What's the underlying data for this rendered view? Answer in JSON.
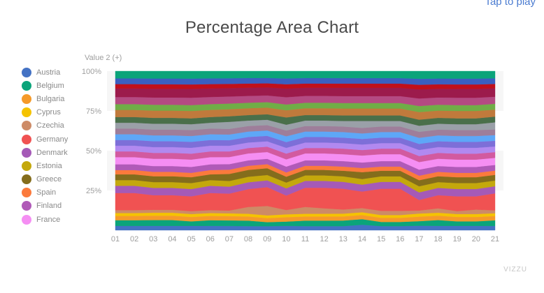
{
  "header": {
    "tap_label": "Tap to play"
  },
  "footer": {
    "watermark": "VIZZU"
  },
  "chart_data": {
    "type": "area",
    "stacking": "percent",
    "title": "Percentage Area Chart",
    "ylabel": "Value 2 (+)",
    "xlabel": "",
    "ylim": [
      0,
      100
    ],
    "yticks": [
      "25%",
      "50%",
      "75%",
      "100%"
    ],
    "categories": [
      "01",
      "02",
      "03",
      "04",
      "05",
      "06",
      "07",
      "08",
      "09",
      "10",
      "11",
      "12",
      "13",
      "14",
      "15",
      "16",
      "17",
      "18",
      "19",
      "20",
      "21"
    ],
    "series": [
      {
        "name": "Austria",
        "color": "#4472c4",
        "values": [
          3,
          3,
          3,
          3,
          3,
          3,
          3,
          3,
          3,
          3,
          3,
          3,
          3,
          4,
          3,
          3,
          3,
          3,
          3,
          3,
          3
        ]
      },
      {
        "name": "Belgium",
        "color": "#0ba47a",
        "values": [
          4,
          4,
          4,
          4,
          3,
          4,
          4,
          4,
          3,
          3,
          4,
          4,
          4,
          4,
          3,
          3,
          3,
          4,
          3,
          3,
          4
        ]
      },
      {
        "name": "Bulgaria",
        "color": "#f59a2a",
        "values": [
          3,
          3,
          3,
          3,
          3,
          3,
          3,
          3,
          3,
          3,
          3,
          3,
          3,
          3,
          3,
          3,
          3,
          3,
          3,
          3,
          3
        ]
      },
      {
        "name": "Cyprus",
        "color": "#f5c300",
        "values": [
          2,
          2,
          2,
          2,
          2,
          2,
          2,
          2,
          2,
          2,
          2,
          2,
          2,
          2,
          2,
          2,
          2,
          2,
          2,
          2,
          2
        ]
      },
      {
        "name": "Czechia",
        "color": "#cd8b67",
        "values": [
          2,
          2,
          2,
          2,
          2,
          2,
          2,
          5,
          7,
          3,
          5,
          4,
          3,
          3,
          3,
          3,
          2,
          3,
          2,
          3,
          2
        ]
      },
      {
        "name": "Germany",
        "color": "#f05252",
        "values": [
          12,
          12,
          10,
          10,
          10,
          12,
          12,
          13,
          14,
          10,
          14,
          15,
          15,
          12,
          16,
          16,
          7,
          9,
          10,
          9,
          12
        ]
      },
      {
        "name": "Denmark",
        "color": "#a55ab7",
        "values": [
          5,
          5,
          5,
          5,
          5,
          5,
          5,
          5,
          5,
          5,
          5,
          5,
          5,
          5,
          5,
          5,
          5,
          5,
          5,
          5,
          5
        ]
      },
      {
        "name": "Estonia",
        "color": "#c4a80c",
        "values": [
          4,
          4,
          4,
          4,
          4,
          4,
          4,
          4,
          4,
          4,
          4,
          4,
          4,
          4,
          4,
          4,
          4,
          4,
          4,
          4,
          4
        ]
      },
      {
        "name": "Greece",
        "color": "#846d1c",
        "values": [
          4,
          4,
          4,
          4,
          4,
          4,
          5,
          5,
          5,
          4,
          4,
          4,
          4,
          5,
          4,
          4,
          4,
          4,
          4,
          4,
          4
        ]
      },
      {
        "name": "Spain",
        "color": "#fb7a3c",
        "values": [
          3,
          3,
          3,
          3,
          3,
          3,
          3,
          3,
          3,
          3,
          3,
          3,
          3,
          3,
          3,
          3,
          3,
          3,
          3,
          3,
          3
        ]
      },
      {
        "name": "Finland",
        "color": "#b05ab8",
        "values": [
          4,
          4,
          4,
          4,
          4,
          4,
          4,
          4,
          4,
          4,
          4,
          4,
          4,
          4,
          4,
          4,
          4,
          4,
          4,
          4,
          4
        ]
      },
      {
        "name": "France",
        "color": "#f58ef3",
        "values": [
          5,
          5,
          5,
          5,
          5,
          5,
          5,
          5,
          5,
          5,
          5,
          5,
          5,
          5,
          5,
          5,
          5,
          5,
          5,
          5,
          5
        ]
      },
      {
        "name": "",
        "color": "#d25aa0",
        "values": [
          4,
          4,
          4,
          4,
          4,
          4,
          4,
          4,
          4,
          4,
          4,
          4,
          4,
          4,
          4,
          4,
          4,
          4,
          4,
          4,
          4
        ]
      },
      {
        "name": "",
        "color": "#b189f0",
        "values": [
          4,
          4,
          4,
          4,
          4,
          4,
          4,
          4,
          4,
          4,
          4,
          4,
          4,
          4,
          4,
          4,
          4,
          4,
          4,
          4,
          4
        ]
      },
      {
        "name": "",
        "color": "#7d6fd8",
        "values": [
          4,
          4,
          4,
          4,
          4,
          4,
          4,
          4,
          4,
          4,
          4,
          4,
          4,
          4,
          4,
          4,
          4,
          4,
          4,
          4,
          4
        ]
      },
      {
        "name": "",
        "color": "#5ea7f7",
        "values": [
          4,
          4,
          4,
          4,
          4,
          4,
          4,
          4,
          4,
          4,
          4,
          4,
          4,
          4,
          4,
          4,
          4,
          4,
          4,
          4,
          4
        ]
      },
      {
        "name": "",
        "color": "#9e7e9a",
        "values": [
          4,
          4,
          4,
          4,
          4,
          4,
          4,
          4,
          4,
          4,
          4,
          4,
          4,
          4,
          4,
          4,
          4,
          4,
          4,
          4,
          4
        ]
      },
      {
        "name": "",
        "color": "#9aa0a8",
        "values": [
          4,
          4,
          4,
          4,
          4,
          4,
          5,
          4,
          4,
          4,
          4,
          4,
          4,
          5,
          4,
          4,
          4,
          4,
          4,
          4,
          5
        ]
      },
      {
        "name": "",
        "color": "#4a6f4a",
        "values": [
          4,
          4,
          4,
          4,
          4,
          4,
          4,
          4,
          4,
          5,
          4,
          4,
          4,
          4,
          4,
          4,
          4,
          4,
          4,
          4,
          4
        ]
      },
      {
        "name": "",
        "color": "#c07a3c",
        "values": [
          5,
          5,
          5,
          5,
          5,
          5,
          5,
          5,
          5,
          5,
          5,
          5,
          5,
          5,
          5,
          5,
          5,
          5,
          5,
          5,
          5
        ]
      },
      {
        "name": "",
        "color": "#70ad47",
        "values": [
          4,
          4,
          4,
          4,
          4,
          4,
          4,
          4,
          4,
          4,
          4,
          4,
          4,
          4,
          4,
          4,
          4,
          4,
          4,
          4,
          4
        ]
      },
      {
        "name": "",
        "color": "#b44a82",
        "values": [
          5,
          5,
          5,
          5,
          5,
          5,
          5,
          5,
          5,
          5,
          5,
          5,
          5,
          5,
          5,
          5,
          5,
          5,
          5,
          5,
          5
        ]
      },
      {
        "name": "",
        "color": "#9c1b4c",
        "values": [
          6,
          6,
          6,
          6,
          6,
          6,
          6,
          6,
          6,
          6,
          6,
          6,
          6,
          6,
          6,
          6,
          6,
          6,
          6,
          6,
          6
        ]
      },
      {
        "name": "",
        "color": "#c0101b",
        "values": [
          3,
          3,
          3,
          3,
          3,
          3,
          3,
          3,
          3,
          3,
          3,
          3,
          3,
          3,
          3,
          3,
          3,
          3,
          3,
          3,
          3
        ]
      },
      {
        "name": "",
        "color": "#3b5fc0",
        "values": [
          4,
          4,
          4,
          4,
          4,
          4,
          4,
          4,
          4,
          4,
          4,
          4,
          4,
          4,
          4,
          4,
          4,
          4,
          4,
          4,
          4
        ]
      },
      {
        "name": "",
        "color": "#0ba47a",
        "values": [
          5,
          5,
          5,
          5,
          5,
          5,
          5,
          5,
          5,
          5,
          5,
          5,
          5,
          5,
          5,
          5,
          5,
          5,
          5,
          5,
          5
        ]
      }
    ],
    "legend_position": "left",
    "grid": true
  }
}
